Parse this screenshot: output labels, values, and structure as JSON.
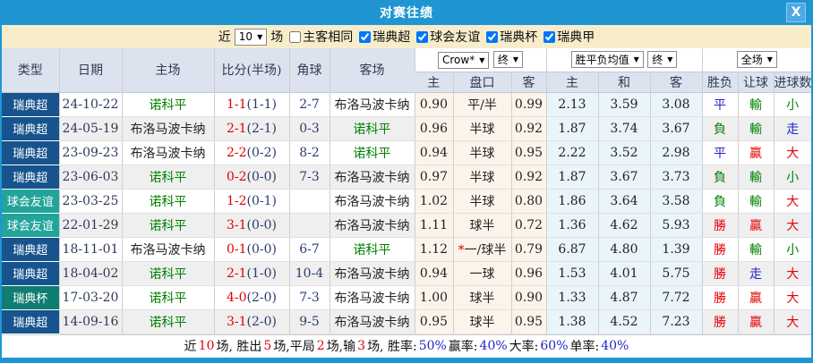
{
  "dialog": {
    "title": "对赛往绩",
    "close_label": "X"
  },
  "filter": {
    "prefix": "近",
    "count": "10",
    "suffix": "场",
    "same_label": "主客相同",
    "same_checked": false,
    "leagues": [
      {
        "label": "瑞典超",
        "checked": true
      },
      {
        "label": "球会友谊",
        "checked": true
      },
      {
        "label": "瑞典杯",
        "checked": true
      },
      {
        "label": "瑞典甲",
        "checked": true
      }
    ]
  },
  "header": {
    "static": [
      "类型",
      "日期",
      "主场",
      "比分(半场)",
      "角球",
      "客场"
    ],
    "odds_group": {
      "book": "Crow*",
      "final": "终"
    },
    "avg_group": {
      "label": "胜平负均值",
      "final": "终"
    },
    "full_group": {
      "label": "全场"
    },
    "sub": [
      "主",
      "盘口",
      "客",
      "主",
      "和",
      "客",
      "胜负",
      "让球",
      "进球数"
    ]
  },
  "league_colors": {
    "瑞典超": "#17538D",
    "球会友谊": "#22A49A",
    "瑞典杯": "#0F7D72"
  },
  "rows": [
    {
      "league": "瑞典超",
      "date": "24-10-22",
      "home": "诺科平",
      "hc": "g",
      "ft": "1-1",
      "ht": "(1-1)",
      "corner": "2-7",
      "away": "布洛马波卡纳",
      "ac": "k",
      "o1": "0.90",
      "handicap": "平/半",
      "star": false,
      "o2": "0.99",
      "a1": "2.13",
      "a2": "3.59",
      "a3": "3.08",
      "res": [
        [
          "平",
          "b"
        ],
        [
          "輸",
          "g"
        ],
        [
          "小",
          "g"
        ]
      ]
    },
    {
      "league": "瑞典超",
      "date": "24-05-19",
      "home": "布洛马波卡纳",
      "hc": "k",
      "ft": "2-1",
      "ht": "(2-1)",
      "corner": "0-3",
      "away": "诺科平",
      "ac": "g",
      "o1": "0.96",
      "handicap": "半球",
      "star": false,
      "o2": "0.92",
      "a1": "1.87",
      "a2": "3.74",
      "a3": "3.67",
      "res": [
        [
          "負",
          "g"
        ],
        [
          "輸",
          "g"
        ],
        [
          "走",
          "b"
        ]
      ]
    },
    {
      "league": "瑞典超",
      "date": "23-09-23",
      "home": "布洛马波卡纳",
      "hc": "k",
      "ft": "2-2",
      "ht": "(0-2)",
      "corner": "8-2",
      "away": "诺科平",
      "ac": "g",
      "o1": "0.94",
      "handicap": "半球",
      "star": false,
      "o2": "0.95",
      "a1": "2.22",
      "a2": "3.52",
      "a3": "2.98",
      "res": [
        [
          "平",
          "b"
        ],
        [
          "贏",
          "r"
        ],
        [
          "大",
          "r"
        ]
      ]
    },
    {
      "league": "瑞典超",
      "date": "23-06-03",
      "home": "诺科平",
      "hc": "g",
      "ft": "0-2",
      "ht": "(0-0)",
      "corner": "7-3",
      "away": "布洛马波卡纳",
      "ac": "k",
      "o1": "0.97",
      "handicap": "半球",
      "star": false,
      "o2": "0.92",
      "a1": "1.87",
      "a2": "3.67",
      "a3": "3.73",
      "res": [
        [
          "負",
          "g"
        ],
        [
          "輸",
          "g"
        ],
        [
          "小",
          "g"
        ]
      ]
    },
    {
      "league": "球会友谊",
      "date": "23-03-25",
      "home": "诺科平",
      "hc": "g",
      "ft": "1-2",
      "ht": "(0-1)",
      "corner": "",
      "away": "布洛马波卡纳",
      "ac": "k",
      "o1": "1.02",
      "handicap": "半球",
      "star": false,
      "o2": "0.80",
      "a1": "1.86",
      "a2": "3.64",
      "a3": "3.58",
      "res": [
        [
          "負",
          "g"
        ],
        [
          "輸",
          "g"
        ],
        [
          "大",
          "r"
        ]
      ]
    },
    {
      "league": "球会友谊",
      "date": "22-01-29",
      "home": "诺科平",
      "hc": "g",
      "ft": "3-1",
      "ht": "(0-0)",
      "corner": "",
      "away": "布洛马波卡纳",
      "ac": "k",
      "o1": "1.11",
      "handicap": "球半",
      "star": false,
      "o2": "0.72",
      "a1": "1.36",
      "a2": "4.62",
      "a3": "5.93",
      "res": [
        [
          "勝",
          "r"
        ],
        [
          "贏",
          "r"
        ],
        [
          "大",
          "r"
        ]
      ]
    },
    {
      "league": "瑞典超",
      "date": "18-11-01",
      "home": "布洛马波卡纳",
      "hc": "k",
      "ft": "0-1",
      "ht": "(0-0)",
      "corner": "6-7",
      "away": "诺科平",
      "ac": "g",
      "o1": "1.12",
      "handicap": "一/球半",
      "star": true,
      "o2": "0.79",
      "a1": "6.87",
      "a2": "4.80",
      "a3": "1.39",
      "res": [
        [
          "勝",
          "r"
        ],
        [
          "輸",
          "g"
        ],
        [
          "小",
          "g"
        ]
      ]
    },
    {
      "league": "瑞典超",
      "date": "18-04-02",
      "home": "诺科平",
      "hc": "g",
      "ft": "2-1",
      "ht": "(1-0)",
      "corner": "10-4",
      "away": "布洛马波卡纳",
      "ac": "k",
      "o1": "0.94",
      "handicap": "一球",
      "star": false,
      "o2": "0.96",
      "a1": "1.53",
      "a2": "4.01",
      "a3": "5.75",
      "res": [
        [
          "勝",
          "r"
        ],
        [
          "走",
          "b"
        ],
        [
          "大",
          "r"
        ]
      ]
    },
    {
      "league": "瑞典杯",
      "date": "17-03-20",
      "home": "诺科平",
      "hc": "g",
      "ft": "4-0",
      "ht": "(2-0)",
      "corner": "7-3",
      "away": "布洛马波卡纳",
      "ac": "k",
      "o1": "1.00",
      "handicap": "球半",
      "star": false,
      "o2": "0.90",
      "a1": "1.33",
      "a2": "4.87",
      "a3": "7.72",
      "res": [
        [
          "勝",
          "r"
        ],
        [
          "贏",
          "r"
        ],
        [
          "大",
          "r"
        ]
      ]
    },
    {
      "league": "瑞典超",
      "date": "14-09-16",
      "home": "诺科平",
      "hc": "g",
      "ft": "3-1",
      "ht": "(2-0)",
      "corner": "9-5",
      "away": "布洛马波卡纳",
      "ac": "k",
      "o1": "0.95",
      "handicap": "球半",
      "star": false,
      "o2": "0.95",
      "a1": "1.38",
      "a2": "4.52",
      "a3": "7.23",
      "res": [
        [
          "勝",
          "r"
        ],
        [
          "贏",
          "r"
        ],
        [
          "大",
          "r"
        ]
      ]
    }
  ],
  "summary": [
    [
      "近 ",
      "k"
    ],
    [
      "10",
      "r"
    ],
    [
      " 场, 胜出 ",
      "k"
    ],
    [
      "5",
      "r"
    ],
    [
      " 场,平局 ",
      "k"
    ],
    [
      "2",
      "r"
    ],
    [
      " 场,输 ",
      "k"
    ],
    [
      "3",
      "r"
    ],
    [
      " 场, 胜率: ",
      "k"
    ],
    [
      "50%",
      "b"
    ],
    [
      " 赢率: ",
      "k"
    ],
    [
      "40%",
      "b"
    ],
    [
      " 大率: ",
      "k"
    ],
    [
      "60%",
      "b"
    ],
    [
      " 单率: ",
      "k"
    ],
    [
      "40%",
      "b"
    ]
  ]
}
